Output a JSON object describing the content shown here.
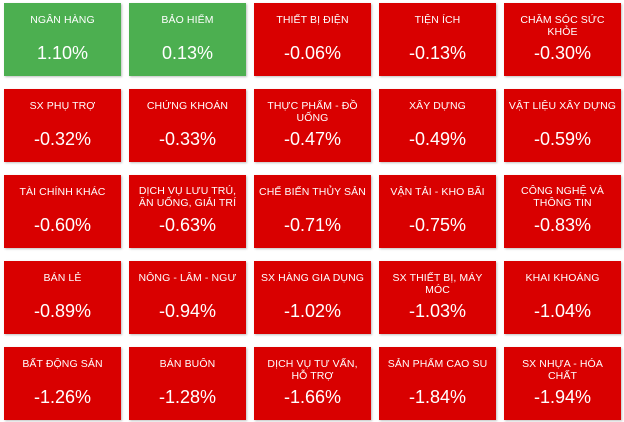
{
  "colors": {
    "up": "#4CAF50",
    "down": "#D90000"
  },
  "tiles": [
    {
      "name": "NGÂN HÀNG",
      "value": "1.10%",
      "trend": "up"
    },
    {
      "name": "BẢO HIỂM",
      "value": "0.13%",
      "trend": "up"
    },
    {
      "name": "THIẾT BỊ ĐIỆN",
      "value": "-0.06%",
      "trend": "down"
    },
    {
      "name": "TIỆN ÍCH",
      "value": "-0.13%",
      "trend": "down"
    },
    {
      "name": "CHĂM SÓC SỨC KHỎE",
      "value": "-0.30%",
      "trend": "down"
    },
    {
      "name": "SX PHỤ TRỢ",
      "value": "-0.32%",
      "trend": "down"
    },
    {
      "name": "CHỨNG KHOÁN",
      "value": "-0.33%",
      "trend": "down"
    },
    {
      "name": "THỰC PHẨM - ĐỒ UỐNG",
      "value": "-0.47%",
      "trend": "down"
    },
    {
      "name": "XÂY DỰNG",
      "value": "-0.49%",
      "trend": "down"
    },
    {
      "name": "VẬT LIỆU XÂY DỰNG",
      "value": "-0.59%",
      "trend": "down"
    },
    {
      "name": "TÀI CHÍNH KHÁC",
      "value": "-0.60%",
      "trend": "down"
    },
    {
      "name": "DỊCH VỤ LƯU TRÚ, ĂN UỐNG, GIẢI TRÍ",
      "value": "-0.63%",
      "trend": "down"
    },
    {
      "name": "CHẾ BIẾN THỦY SẢN",
      "value": "-0.71%",
      "trend": "down"
    },
    {
      "name": "VẬN TẢI - KHO BÃI",
      "value": "-0.75%",
      "trend": "down"
    },
    {
      "name": "CÔNG NGHỆ VÀ THÔNG TIN",
      "value": "-0.83%",
      "trend": "down"
    },
    {
      "name": "BÁN LẺ",
      "value": "-0.89%",
      "trend": "down"
    },
    {
      "name": "NÔNG - LÂM - NGƯ",
      "value": "-0.94%",
      "trend": "down"
    },
    {
      "name": "SX HÀNG GIA DỤNG",
      "value": "-1.02%",
      "trend": "down"
    },
    {
      "name": "SX THIẾT BỊ, MÁY MÓC",
      "value": "-1.03%",
      "trend": "down"
    },
    {
      "name": "KHAI KHOÁNG",
      "value": "-1.04%",
      "trend": "down"
    },
    {
      "name": "BẤT ĐỘNG SẢN",
      "value": "-1.26%",
      "trend": "down"
    },
    {
      "name": "BÁN BUÔN",
      "value": "-1.28%",
      "trend": "down"
    },
    {
      "name": "DỊCH VỤ TƯ VẤN, HỖ TRỢ",
      "value": "-1.66%",
      "trend": "down"
    },
    {
      "name": "SẢN PHẨM CAO SU",
      "value": "-1.84%",
      "trend": "down"
    },
    {
      "name": "SX NHỰA - HÓA CHẤT",
      "value": "-1.94%",
      "trend": "down"
    }
  ]
}
